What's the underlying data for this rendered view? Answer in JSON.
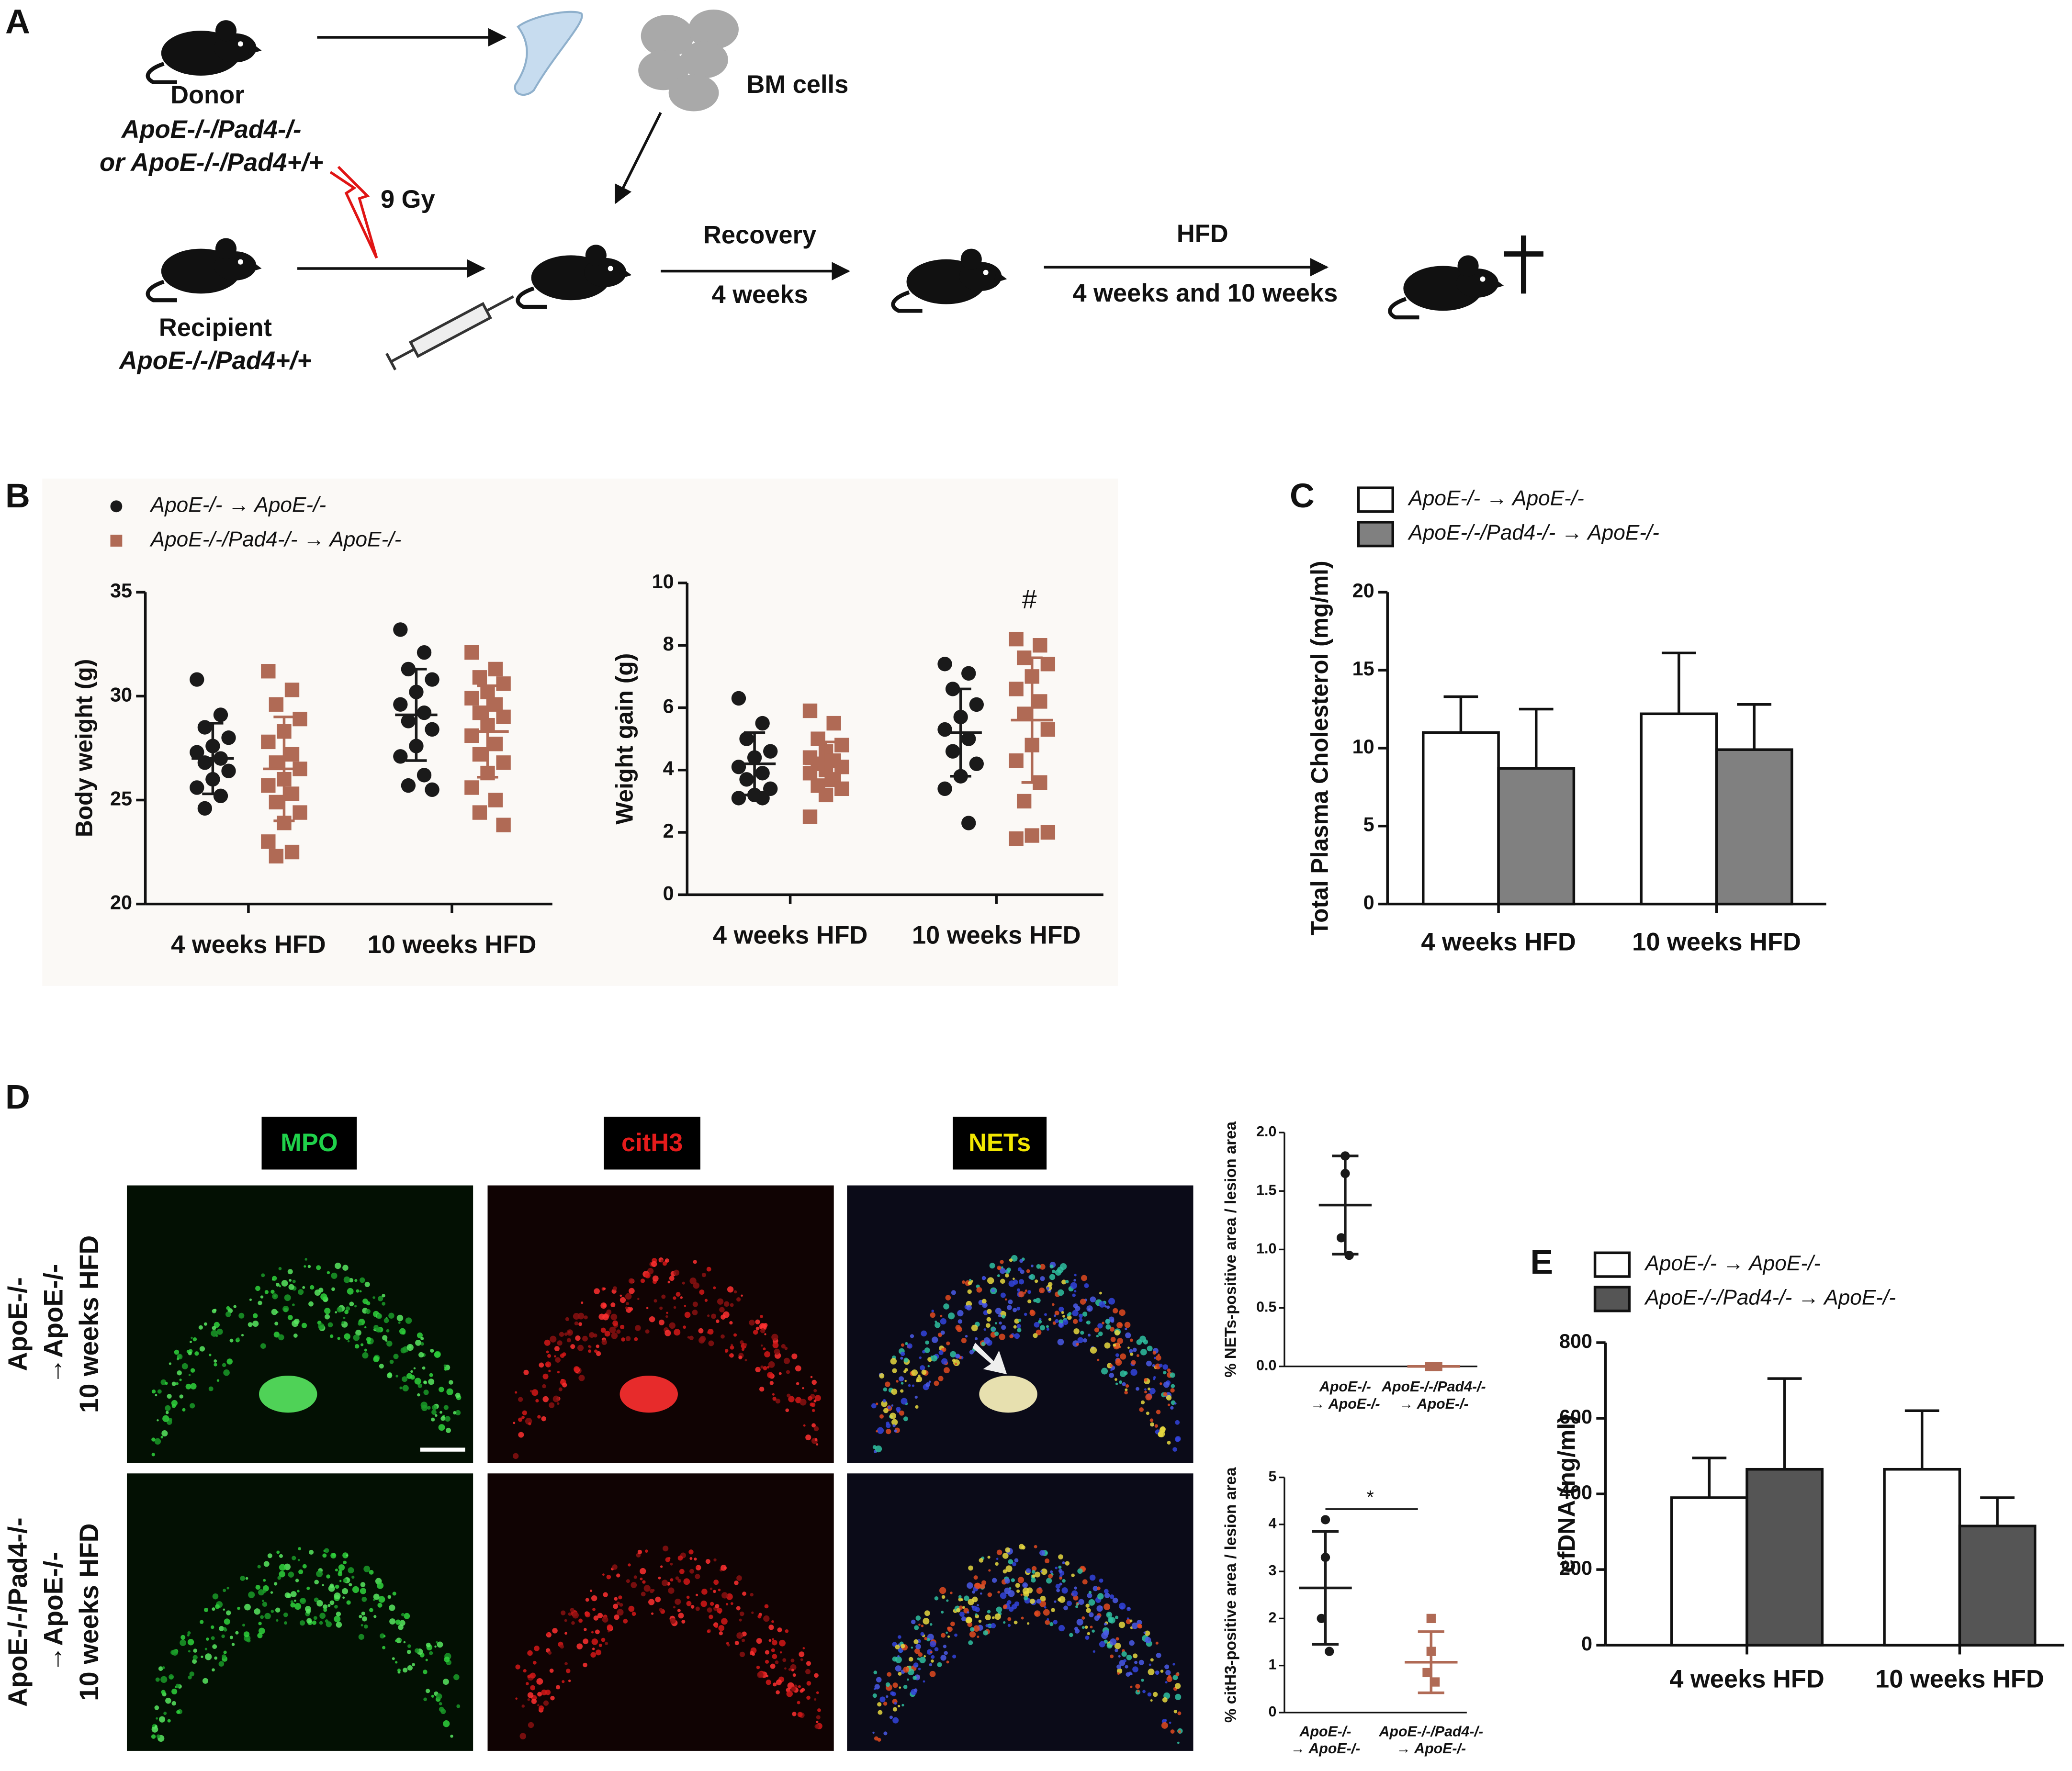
{
  "panels": [
    "A",
    "B",
    "C",
    "D",
    "E"
  ],
  "schematic": {
    "donor": "Donor",
    "donor_genotype_1": "ApoE-/-/Pad4-/-",
    "donor_genotype_2": "or ApoE-/-/Pad4+/+",
    "bm_cells": "BM cells",
    "irradiation": "9 Gy",
    "recovery": "Recovery",
    "recovery_time": "4 weeks",
    "diet": "HFD",
    "diet_time": "4 weeks and 10 weeks",
    "recipient": "Recipient",
    "recipient_genotype": "ApoE-/-/Pad4+/+"
  },
  "micrographs": {
    "stains": [
      "MPO",
      "citH3",
      "NETs"
    ],
    "rows": [
      [
        "ApoE-/-",
        "→ApoE-/-",
        "10 weeks HFD"
      ],
      [
        "ApoE-/-/Pad4-/-",
        "→ApoE-/-",
        "10 weeks HFD"
      ]
    ]
  },
  "chart_data": [
    {
      "type": "dot",
      "y_label": "Body weight (g)",
      "categories": [
        "4 weeks HFD",
        "10 weeks HFD"
      ],
      "ylim": [
        20,
        35
      ],
      "yticks": [
        20,
        25,
        30,
        35
      ],
      "legend": "top-left",
      "series": [
        {
          "name": "ApoE-/- → ApoE-/-",
          "color": "#1a1a1a",
          "marker": "circle",
          "values": [
            [
              30.8,
              29.1,
              28.5,
              28.0,
              27.6,
              27.3,
              27.0,
              26.8,
              26.4,
              26.0,
              25.6,
              25.2,
              24.6
            ],
            [
              33.2,
              32.1,
              31.3,
              30.8,
              30.2,
              29.6,
              29.2,
              28.8,
              28.4,
              27.6,
              27.1,
              26.2,
              25.7,
              25.5
            ]
          ],
          "mean": [
            27.0,
            29.1
          ],
          "sd": [
            1.7,
            2.2
          ]
        },
        {
          "name": "ApoE-/-/Pad4-/- → ApoE-/-",
          "color": "#b06a55",
          "marker": "square",
          "values": [
            [
              31.2,
              30.3,
              29.6,
              28.9,
              28.3,
              27.8,
              27.2,
              26.8,
              26.5,
              26.0,
              25.7,
              25.3,
              24.9,
              24.4,
              23.9,
              23.0,
              22.5,
              22.3
            ],
            [
              32.1,
              31.3,
              30.9,
              30.6,
              30.2,
              29.9,
              29.6,
              29.2,
              29.0,
              28.6,
              28.1,
              27.7,
              27.2,
              26.8,
              26.3,
              25.6,
              25.0,
              24.4,
              23.8
            ]
          ],
          "mean": [
            26.5,
            28.3
          ],
          "sd": [
            2.5,
            2.2
          ]
        }
      ]
    },
    {
      "type": "dot",
      "y_label": "Weight gain (g)",
      "categories": [
        "4 weeks HFD",
        "10 weeks HFD"
      ],
      "ylim": [
        0,
        10
      ],
      "yticks": [
        0,
        2,
        4,
        6,
        8,
        10
      ],
      "annotation": "#",
      "series": [
        {
          "color": "#1a1a1a",
          "marker": "circle",
          "values": [
            [
              6.3,
              5.5,
              5.0,
              4.6,
              4.4,
              4.1,
              3.9,
              3.7,
              3.4,
              3.2,
              3.1,
              3.1
            ],
            [
              7.4,
              7.1,
              6.6,
              6.1,
              5.7,
              5.3,
              5.0,
              4.6,
              4.2,
              3.8,
              3.4,
              2.3
            ]
          ],
          "mean": [
            4.2,
            5.2
          ],
          "sd": [
            1.0,
            1.4
          ]
        },
        {
          "color": "#b06a55",
          "marker": "square",
          "values": [
            [
              5.9,
              5.5,
              5.0,
              4.8,
              4.6,
              4.4,
              4.3,
              4.2,
              4.1,
              4.0,
              3.9,
              3.7,
              3.5,
              3.4,
              3.2,
              2.5
            ],
            [
              8.2,
              8.0,
              7.6,
              7.4,
              7.0,
              6.6,
              6.2,
              5.8,
              5.3,
              4.8,
              4.3,
              3.6,
              3.0,
              2.0,
              1.9,
              1.8
            ]
          ],
          "mean": [
            4.2,
            5.6
          ],
          "sd": [
            0.7,
            2.0
          ]
        }
      ]
    },
    {
      "type": "bar",
      "y_label": "Total Plasma Cholesterol (mg/ml)",
      "categories": [
        "4 weeks HFD",
        "10 weeks HFD"
      ],
      "ylim": [
        0,
        20
      ],
      "yticks": [
        0,
        5,
        10,
        15,
        20
      ],
      "legend": "top-left",
      "series": [
        {
          "name": "ApoE-/- → ApoE-/-",
          "color": "#ffffff",
          "values": [
            11.0,
            12.2
          ],
          "errors": [
            2.3,
            3.9
          ]
        },
        {
          "name": "ApoE-/-/Pad4-/- → ApoE-/-",
          "color": "#808080",
          "values": [
            8.7,
            9.9
          ],
          "errors": [
            3.8,
            2.9
          ]
        }
      ]
    },
    {
      "type": "dot",
      "y_label": "% NETs-positive area / lesion area",
      "categories": [
        [
          "ApoE-/-",
          "→ ApoE-/-"
        ],
        [
          "ApoE-/-/Pad4-/-",
          "→ ApoE-/-"
        ]
      ],
      "ylim": [
        0,
        2
      ],
      "yticks": [
        {
          "value": 0,
          "label": "0.0"
        },
        0.5,
        {
          "value": 1,
          "label": "1.0"
        },
        1.5,
        {
          "value": 2,
          "label": "2.0"
        }
      ],
      "values": [
        [
          1.8,
          1.65,
          1.1,
          0.95
        ],
        [
          0,
          0,
          0,
          0
        ]
      ],
      "mean": [
        1.38,
        0
      ],
      "sd": [
        0.42,
        0
      ],
      "colors": [
        "#1a1a1a",
        "#b06a55"
      ],
      "markers": [
        "circle",
        "square"
      ]
    },
    {
      "type": "dot",
      "y_label": "% citH3-positive area / lesion area",
      "categories": [
        [
          "ApoE-/-",
          "→ ApoE-/-"
        ],
        [
          "ApoE-/-/Pad4-/-",
          "→ ApoE-/-"
        ]
      ],
      "ylim": [
        0,
        5
      ],
      "yticks": [
        0,
        1,
        2,
        3,
        4,
        5
      ],
      "annotation": "*",
      "values": [
        [
          4.1,
          3.3,
          2.0,
          1.3
        ],
        [
          2.0,
          1.3,
          0.85,
          0.65
        ]
      ],
      "mean": [
        2.65,
        1.07
      ],
      "sd": [
        1.2,
        0.65
      ],
      "colors": [
        "#1a1a1a",
        "#b06a55"
      ],
      "markers": [
        "circle",
        "square"
      ]
    },
    {
      "type": "bar",
      "y_label": "cfDNA (ng/ml)",
      "categories": [
        "4 weeks HFD",
        "10 weeks HFD"
      ],
      "ylim": [
        0,
        800
      ],
      "yticks": [
        0,
        200,
        400,
        600,
        800
      ],
      "legend": "top-left",
      "series": [
        {
          "name": "ApoE-/- → ApoE-/-",
          "color": "#ffffff",
          "values": [
            390,
            465
          ],
          "errors": [
            105,
            155
          ]
        },
        {
          "name": "ApoE-/-/Pad4-/- → ApoE-/-",
          "color": "#555555",
          "values": [
            465,
            315
          ],
          "errors": [
            240,
            75
          ]
        }
      ]
    }
  ]
}
